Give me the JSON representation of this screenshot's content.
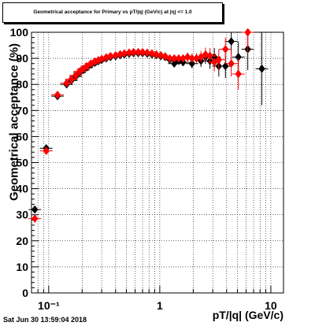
{
  "chart_data": {
    "type": "scatter",
    "title": "Geometrical acceptance for Primary vs pT/|q| (GeV/c) at |η| <= 1.0",
    "xlabel": "pT/|q| (GeV/c)",
    "ylabel": "Geometrical acceptance (%)",
    "xscale": "log",
    "xlim": [
      0.07,
      13
    ],
    "ylim": [
      0,
      100
    ],
    "grid": true,
    "x_tick_labels": [
      "10⁻¹",
      "1",
      "10"
    ],
    "x_tick_values": [
      0.1,
      1,
      10
    ],
    "y_ticks": [
      0,
      10,
      20,
      30,
      40,
      50,
      60,
      70,
      80,
      90,
      100
    ],
    "series": [
      {
        "color": "#000000",
        "marker": "diamond",
        "points": [
          [
            0.075,
            32.0,
            0.6
          ],
          [
            0.095,
            55.5,
            0.6
          ],
          [
            0.12,
            75.5,
            0.5
          ],
          [
            0.145,
            80.0,
            0.5
          ],
          [
            0.16,
            81.5,
            0.4
          ],
          [
            0.175,
            83.0,
            0.4
          ],
          [
            0.19,
            84.5,
            0.4
          ],
          [
            0.205,
            85.5,
            0.4
          ],
          [
            0.22,
            86.5,
            0.4
          ],
          [
            0.24,
            87.5,
            0.4
          ],
          [
            0.26,
            88.3,
            0.4
          ],
          [
            0.28,
            88.9,
            0.4
          ],
          [
            0.3,
            89.4,
            0.4
          ],
          [
            0.33,
            90.0,
            0.4
          ],
          [
            0.36,
            90.5,
            0.4
          ],
          [
            0.4,
            90.8,
            0.4
          ],
          [
            0.44,
            91.2,
            0.4
          ],
          [
            0.48,
            91.5,
            0.4
          ],
          [
            0.53,
            91.8,
            0.4
          ],
          [
            0.58,
            92.0,
            0.4
          ],
          [
            0.64,
            92.0,
            0.4
          ],
          [
            0.7,
            92.0,
            0.4
          ],
          [
            0.77,
            91.8,
            0.4
          ],
          [
            0.85,
            91.5,
            0.5
          ],
          [
            0.93,
            91.2,
            0.6
          ],
          [
            1.02,
            90.8,
            0.7
          ],
          [
            1.12,
            90.5,
            0.8
          ],
          [
            1.23,
            89.5,
            1.0
          ],
          [
            1.35,
            88.0,
            1.2
          ],
          [
            1.48,
            89.0,
            1.3
          ],
          [
            1.62,
            88.5,
            1.5
          ],
          [
            1.78,
            90.5,
            1.6
          ],
          [
            1.95,
            88.0,
            1.8
          ],
          [
            2.14,
            90.0,
            2.0
          ],
          [
            2.35,
            89.0,
            2.3
          ],
          [
            2.58,
            90.5,
            2.6
          ],
          [
            2.83,
            89.0,
            3.0
          ],
          [
            3.1,
            90.5,
            3.5
          ],
          [
            3.4,
            87.0,
            4.0
          ],
          [
            3.9,
            87.0,
            4.5
          ],
          [
            4.4,
            96.5,
            5.0
          ],
          [
            5.1,
            90.5,
            6.0
          ],
          [
            6.2,
            93.5,
            8.0
          ],
          [
            8.3,
            86.0,
            14.0
          ]
        ]
      },
      {
        "color": "#ff0000",
        "marker": "diamond",
        "points": [
          [
            0.075,
            28.5,
            0.6
          ],
          [
            0.095,
            54.5,
            0.6
          ],
          [
            0.12,
            76.0,
            0.5
          ],
          [
            0.145,
            80.5,
            0.5
          ],
          [
            0.16,
            82.0,
            0.4
          ],
          [
            0.175,
            83.5,
            0.4
          ],
          [
            0.19,
            85.0,
            0.4
          ],
          [
            0.205,
            86.0,
            0.4
          ],
          [
            0.22,
            87.0,
            0.4
          ],
          [
            0.24,
            88.0,
            0.4
          ],
          [
            0.26,
            88.8,
            0.4
          ],
          [
            0.28,
            89.3,
            0.4
          ],
          [
            0.3,
            89.8,
            0.4
          ],
          [
            0.33,
            90.4,
            0.4
          ],
          [
            0.36,
            90.9,
            0.4
          ],
          [
            0.4,
            91.2,
            0.4
          ],
          [
            0.44,
            91.6,
            0.4
          ],
          [
            0.48,
            91.9,
            0.4
          ],
          [
            0.53,
            92.2,
            0.4
          ],
          [
            0.58,
            92.4,
            0.4
          ],
          [
            0.64,
            92.4,
            0.4
          ],
          [
            0.7,
            92.4,
            0.4
          ],
          [
            0.77,
            92.2,
            0.4
          ],
          [
            0.85,
            91.9,
            0.5
          ],
          [
            0.93,
            91.5,
            0.6
          ],
          [
            1.02,
            91.2,
            0.7
          ],
          [
            1.12,
            90.8,
            0.8
          ],
          [
            1.23,
            90.0,
            1.0
          ],
          [
            1.35,
            90.0,
            1.2
          ],
          [
            1.48,
            90.0,
            1.3
          ],
          [
            1.62,
            90.0,
            1.5
          ],
          [
            1.78,
            90.5,
            1.6
          ],
          [
            1.95,
            90.0,
            1.8
          ],
          [
            2.14,
            90.0,
            2.0
          ],
          [
            2.35,
            90.5,
            2.3
          ],
          [
            2.58,
            91.5,
            2.6
          ],
          [
            2.83,
            91.0,
            3.0
          ],
          [
            3.1,
            88.5,
            3.5
          ],
          [
            3.4,
            89.5,
            4.0
          ],
          [
            3.9,
            93.5,
            4.5
          ],
          [
            4.4,
            88.0,
            5.0
          ],
          [
            5.1,
            84.0,
            6.0
          ],
          [
            6.2,
            100.0,
            8.0
          ]
        ]
      }
    ]
  },
  "footer_timestamp": "Sat Jun 30 13:59:04 2018"
}
